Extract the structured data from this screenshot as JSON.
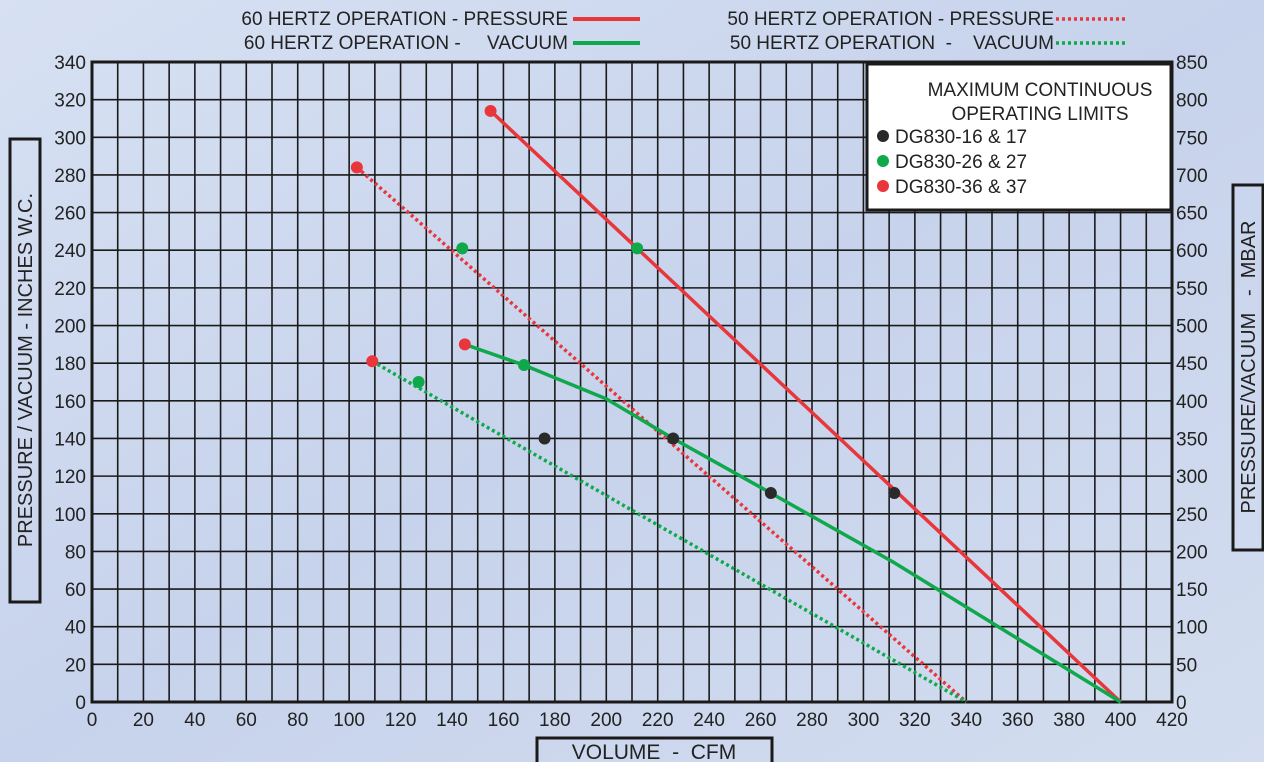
{
  "legend_top": {
    "row1_left": "60 HERTZ OPERATION - PRESSURE",
    "row1_right": "50 HERTZ OPERATION - PRESSURE",
    "row2_left": "60 HERTZ OPERATION -     VACUUM",
    "row2_right": "50 HERTZ OPERATION  -    VACUUM"
  },
  "limits_box": {
    "title_line1": "MAXIMUM CONTINUOUS",
    "title_line2": "OPERATING LIMITS",
    "items": [
      {
        "label": "DG830-16 & 17",
        "color": "#2a2a2a"
      },
      {
        "label": "DG830-26 & 27",
        "color": "#0fa84a"
      },
      {
        "label": "DG830-36 & 37",
        "color": "#e8363a"
      }
    ]
  },
  "colors": {
    "pressure": "#e8363a",
    "vacuum": "#0fa84a",
    "dark": "#2a2a2a",
    "grid": "#1a1a1a",
    "background": "#ccd8ee"
  },
  "chart_data": {
    "type": "line",
    "xlabel": "VOLUME  -  CFM",
    "ylabel": "PRESSURE / VACUUM - INCHES W.C.",
    "y2label": "PRESSURE/VACUUM   -  MBAR",
    "xlim": [
      0,
      420
    ],
    "ylim": [
      0,
      340
    ],
    "y2lim": [
      0,
      850
    ],
    "x_ticks": [
      "0",
      "20",
      "40",
      "60",
      "80",
      "100",
      "120",
      "140",
      "160",
      "180",
      "200",
      "220",
      "240",
      "260",
      "280",
      "300",
      "320",
      "340",
      "360",
      "380",
      "400",
      "420"
    ],
    "y_ticks": [
      "0",
      "20",
      "40",
      "60",
      "80",
      "100",
      "120",
      "140",
      "160",
      "180",
      "200",
      "220",
      "240",
      "260",
      "280",
      "300",
      "320",
      "340"
    ],
    "y2_ticks": [
      "0",
      "50",
      "100",
      "150",
      "200",
      "250",
      "300",
      "350",
      "400",
      "450",
      "500",
      "550",
      "600",
      "650",
      "700",
      "750",
      "800",
      "850"
    ],
    "series": [
      {
        "name": "60 HERTZ OPERATION - PRESSURE",
        "color": "#e8363a",
        "style": "solid",
        "x": [
          155,
          400
        ],
        "y": [
          314,
          0
        ]
      },
      {
        "name": "50 HERTZ OPERATION - PRESSURE",
        "color": "#e8363a",
        "style": "dotted",
        "x": [
          103,
          340
        ],
        "y": [
          284,
          0
        ]
      },
      {
        "name": "60 HERTZ OPERATION -     VACUUM",
        "color": "#0fa84a",
        "style": "solid",
        "x": [
          145,
          168,
          200,
          226,
          264,
          312,
          400
        ],
        "y": [
          190,
          179,
          161,
          140,
          111,
          74,
          0
        ]
      },
      {
        "name": "50 HERTZ OPERATION  -    VACUUM",
        "color": "#0fa84a",
        "style": "dotted",
        "x": [
          109,
          340
        ],
        "y": [
          181,
          0
        ]
      }
    ],
    "limit_points": [
      {
        "group": "DG830-36 & 37",
        "color": "#e8363a",
        "x": 155,
        "y": 314
      },
      {
        "group": "DG830-36 & 37",
        "color": "#e8363a",
        "x": 103,
        "y": 284
      },
      {
        "group": "DG830-36 & 37",
        "color": "#e8363a",
        "x": 145,
        "y": 190
      },
      {
        "group": "DG830-36 & 37",
        "color": "#e8363a",
        "x": 109,
        "y": 181
      },
      {
        "group": "DG830-26 & 27",
        "color": "#0fa84a",
        "x": 212,
        "y": 241
      },
      {
        "group": "DG830-26 & 27",
        "color": "#0fa84a",
        "x": 144,
        "y": 241
      },
      {
        "group": "DG830-26 & 27",
        "color": "#0fa84a",
        "x": 168,
        "y": 179
      },
      {
        "group": "DG830-26 & 27",
        "color": "#0fa84a",
        "x": 127,
        "y": 170
      },
      {
        "group": "DG830-16 & 17",
        "color": "#2a2a2a",
        "x": 176,
        "y": 140
      },
      {
        "group": "DG830-16 & 17",
        "color": "#2a2a2a",
        "x": 226,
        "y": 140
      },
      {
        "group": "DG830-16 & 17",
        "color": "#2a2a2a",
        "x": 264,
        "y": 111
      },
      {
        "group": "DG830-16 & 17",
        "color": "#2a2a2a",
        "x": 312,
        "y": 111
      }
    ]
  }
}
